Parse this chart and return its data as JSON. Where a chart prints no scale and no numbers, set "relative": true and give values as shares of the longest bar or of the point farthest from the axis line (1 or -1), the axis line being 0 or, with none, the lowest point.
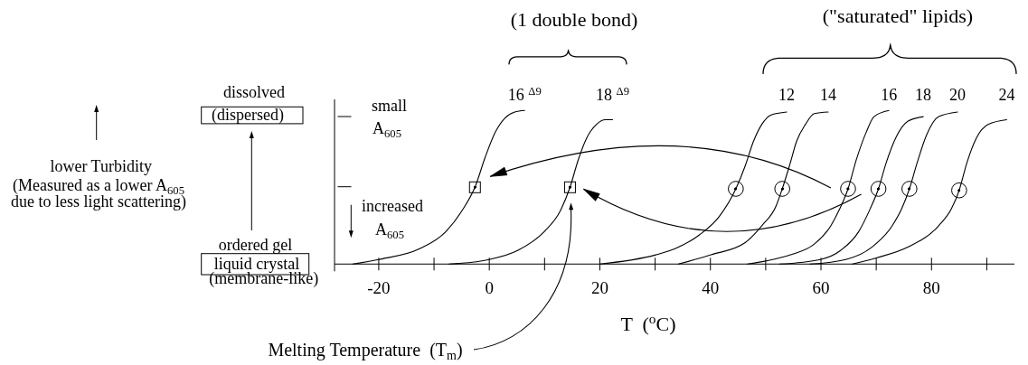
{
  "chart_data": {
    "type": "line",
    "relative": true,
    "xlabel": "T  ($^{o}$C)",
    "xlim": [
      -28,
      95
    ],
    "xticks": [
      -20,
      {
        "value": -10,
        "label": null
      },
      0,
      {
        "value": 10,
        "label": null
      },
      20,
      {
        "value": 30,
        "label": null
      },
      40,
      {
        "value": 50,
        "label": null
      },
      60,
      {
        "value": 70,
        "label": null
      },
      80,
      {
        "value": 90,
        "label": null
      }
    ],
    "series": [
      {
        "name": "16 $^{Δ9}$",
        "color": "#000000",
        "x": [
          -24.7,
          -20.0,
          -12.6,
          -7.9,
          -4.9,
          -2.6,
          -0.7,
          1.1,
          2.8,
          4.6,
          6.4
        ],
        "values": [
          0,
          0.03,
          0.1,
          0.21,
          0.35,
          0.5,
          0.7,
          0.86,
          0.95,
          0.99,
          1.0
        ]
      },
      {
        "name": "18 $^{Δ9}$",
        "color": "#000000",
        "x": [
          -7.3,
          0,
          5.2,
          9.9,
          12.9,
          14.6,
          16.1,
          17.6,
          19.4,
          21.0,
          22.3
        ],
        "values": [
          0,
          0.03,
          0.09,
          0.21,
          0.35,
          0.5,
          0.68,
          0.82,
          0.91,
          0.94,
          0.94
        ]
      },
      {
        "name": "12",
        "color": "#000000",
        "x": [
          20.0,
          30.1,
          33.6,
          38.0,
          41.6,
          44.6,
          46.3,
          47.8,
          49.3,
          50.9,
          53.8
        ],
        "values": [
          0,
          0.06,
          0.1,
          0.19,
          0.31,
          0.49,
          0.64,
          0.8,
          0.91,
          0.97,
          0.99
        ]
      },
      {
        "name": "14",
        "color": "#000000",
        "x": [
          34.2,
          40.1,
          46.3,
          49.3,
          51.9,
          53.0,
          54.3,
          55.6,
          57.2,
          58.8,
          61.3
        ],
        "values": [
          0,
          0.06,
          0.14,
          0.25,
          0.38,
          0.49,
          0.64,
          0.8,
          0.91,
          0.98,
          0.99
        ]
      },
      {
        "name": "16",
        "color": "#000000",
        "x": [
          46.7,
          50.0,
          54.5,
          58.8,
          61.8,
          63.4,
          64.9,
          66.4,
          68.2,
          69.6,
          72.3
        ],
        "values": [
          0,
          0.02,
          0.06,
          0.13,
          0.25,
          0.36,
          0.49,
          0.68,
          0.86,
          0.96,
          1.0
        ]
      },
      {
        "name": "18",
        "color": "#000000",
        "x": [
          52.5,
          59.9,
          63.6,
          66.8,
          68.9,
          70.4,
          71.8,
          73.5,
          75.7,
          78.5
        ],
        "values": [
          0,
          0.03,
          0.09,
          0.21,
          0.36,
          0.49,
          0.66,
          0.82,
          0.93,
          0.96
        ]
      },
      {
        "name": "20",
        "color": "#000000",
        "x": [
          58.0,
          64.5,
          69.2,
          72.9,
          74.6,
          76.0,
          77.4,
          79.1,
          81.3,
          84.7
        ],
        "values": [
          0,
          0.03,
          0.11,
          0.25,
          0.36,
          0.49,
          0.66,
          0.84,
          0.96,
          0.99
        ]
      },
      {
        "name": "24",
        "color": "#000000",
        "x": [
          65.7,
          70.0,
          75.7,
          81.3,
          83.6,
          85.0,
          86.4,
          88.1,
          90.3,
          93.6
        ],
        "values": [
          0,
          0.04,
          0.11,
          0.25,
          0.36,
          0.48,
          0.66,
          0.82,
          0.91,
          0.94
        ]
      },
      {
        "type": "scatter",
        "marker": "square",
        "color": "#000000",
        "x": [
          -2.6,
          14.6
        ],
        "values": [
          0.5,
          0.5
        ]
      },
      {
        "type": "scatter",
        "marker": "circle",
        "color": "#000000",
        "x": [
          44.6,
          53.0,
          64.9,
          70.4,
          76.0,
          85.0
        ],
        "values": [
          0.49,
          0.49,
          0.49,
          0.49,
          0.49,
          0.48
        ]
      }
    ],
    "annotations": [
      "dissolved",
      "(dispersed)",
      "ordered gel",
      "liquid crystal",
      "(membrane-like)",
      "lower Turbidity",
      "(Measured as a lower A$_{605}$",
      "due to less light scattering)",
      "small",
      "A$_{605}$",
      "increased",
      "A$_{605}$",
      "(1 double bond)",
      "(\"saturated\" lipids)",
      "Melting Temperature  (T$_{m}$)"
    ]
  }
}
